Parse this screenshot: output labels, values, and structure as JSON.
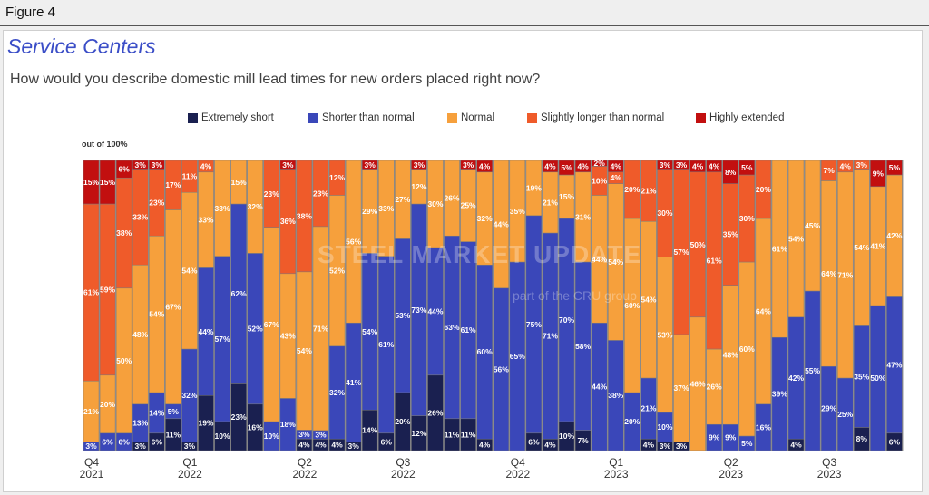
{
  "figure_label": "Figure 4",
  "title": "Service Centers",
  "subtitle": "How would you describe domestic mill lead times for new orders placed right now?",
  "y_axis_note": "out of 100%",
  "watermark": "STEEL MARKET UPDATE",
  "watermark_sub": "part of the CRU group",
  "legend": [
    {
      "label": "Extremely short",
      "color": "#1a2050"
    },
    {
      "label": "Shorter than normal",
      "color": "#3a47b9"
    },
    {
      "label": "Normal",
      "color": "#f6a03c"
    },
    {
      "label": "Slightly longer than normal",
      "color": "#ef5b2a"
    },
    {
      "label": "Highly extended",
      "color": "#c20f0f"
    }
  ],
  "chart_data": {
    "type": "bar",
    "stacked": true,
    "units": "percent",
    "ylim": [
      0,
      100
    ],
    "series_names": [
      "Extremely short",
      "Shorter than normal",
      "Normal",
      "Slightly longer than normal",
      "Highly extended"
    ],
    "colors": [
      "#1a2050",
      "#3a47b9",
      "#f6a03c",
      "#ef5b2a",
      "#c20f0f"
    ],
    "bars": [
      [
        0,
        3,
        21,
        61,
        15
      ],
      [
        0,
        6,
        20,
        59,
        15
      ],
      [
        0,
        6,
        50,
        38,
        6
      ],
      [
        3,
        13,
        48,
        33,
        3
      ],
      [
        6,
        14,
        54,
        23,
        3
      ],
      [
        11,
        5,
        67,
        17,
        0
      ],
      [
        3,
        32,
        54,
        11,
        0
      ],
      [
        19,
        44,
        33,
        4,
        0
      ],
      [
        10,
        57,
        33,
        0,
        0
      ],
      [
        23,
        62,
        15,
        0,
        0
      ],
      [
        16,
        52,
        32,
        0,
        0
      ],
      [
        0,
        10,
        67,
        23,
        0
      ],
      [
        0,
        18,
        43,
        36,
        3
      ],
      [
        4,
        3,
        54,
        38,
        0
      ],
      [
        4,
        3,
        71,
        23,
        0
      ],
      [
        4,
        32,
        52,
        12,
        0
      ],
      [
        3,
        41,
        56,
        0,
        0
      ],
      [
        14,
        54,
        29,
        0,
        3
      ],
      [
        6,
        61,
        33,
        0,
        0
      ],
      [
        20,
        53,
        27,
        0,
        0
      ],
      [
        12,
        73,
        12,
        0,
        3
      ],
      [
        26,
        44,
        30,
        0,
        0
      ],
      [
        11,
        63,
        26,
        0,
        0
      ],
      [
        11,
        61,
        25,
        0,
        3
      ],
      [
        4,
        60,
        32,
        0,
        4
      ],
      [
        0,
        56,
        44,
        0,
        0
      ],
      [
        0,
        65,
        35,
        0,
        0
      ],
      [
        6,
        75,
        19,
        0,
        0
      ],
      [
        4,
        71,
        21,
        0,
        4
      ],
      [
        10,
        70,
        15,
        0,
        5
      ],
      [
        7,
        58,
        31,
        0,
        4
      ],
      [
        0,
        44,
        44,
        10,
        2
      ],
      [
        0,
        38,
        54,
        4,
        4
      ],
      [
        0,
        20,
        60,
        20,
        0
      ],
      [
        4,
        21,
        54,
        21,
        0
      ],
      [
        3,
        10,
        53,
        30,
        3
      ],
      [
        3,
        0,
        37,
        57,
        3
      ],
      [
        0,
        0,
        46,
        50,
        4
      ],
      [
        0,
        9,
        26,
        61,
        4
      ],
      [
        0,
        9,
        48,
        35,
        8
      ],
      [
        0,
        5,
        60,
        30,
        5
      ],
      [
        0,
        16,
        64,
        20,
        0
      ],
      [
        0,
        39,
        61,
        0,
        0
      ],
      [
        4,
        42,
        54,
        0,
        0
      ],
      [
        0,
        55,
        45,
        0,
        0
      ],
      [
        0,
        29,
        64,
        7,
        0
      ],
      [
        0,
        25,
        71,
        4,
        0
      ],
      [
        8,
        35,
        54,
        3,
        0
      ],
      [
        0,
        50,
        41,
        0,
        9
      ],
      [
        6,
        47,
        42,
        0,
        5
      ]
    ],
    "x_ticks": [
      {
        "index": 0,
        "q": "Q4",
        "y": "2021"
      },
      {
        "index": 6,
        "q": "Q1",
        "y": "2022"
      },
      {
        "index": 13,
        "q": "Q2",
        "y": "2022"
      },
      {
        "index": 19,
        "q": "Q3",
        "y": "2022"
      },
      {
        "index": 26,
        "q": "Q4",
        "y": "2022"
      },
      {
        "index": 32,
        "q": "Q1",
        "y": "2023"
      },
      {
        "index": 39,
        "q": "Q2",
        "y": "2023"
      },
      {
        "index": 45,
        "q": "Q3",
        "y": "2023"
      }
    ]
  }
}
